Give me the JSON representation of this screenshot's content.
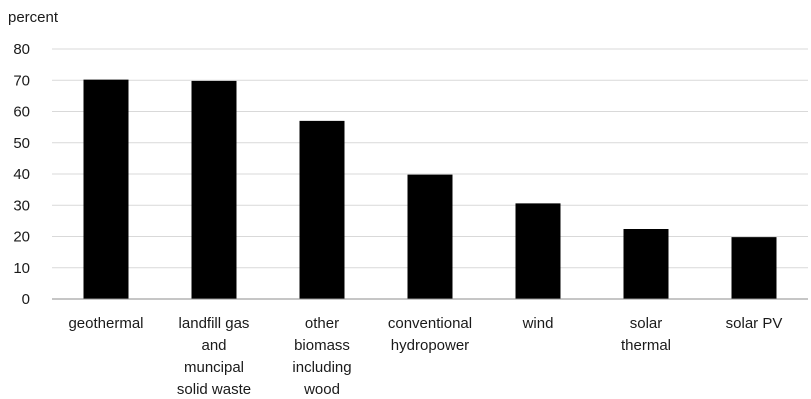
{
  "chart_data": {
    "type": "bar",
    "title": "",
    "xlabel": "",
    "ylabel": "percent",
    "ylim": [
      0,
      80
    ],
    "yticks": [
      0,
      10,
      20,
      30,
      40,
      50,
      60,
      70,
      80
    ],
    "grid": true,
    "legend": "none",
    "categories": [
      [
        "geothermal"
      ],
      [
        "landfill gas",
        "and",
        "muncipal",
        "solid waste"
      ],
      [
        "other",
        "biomass",
        "including",
        "wood"
      ],
      [
        "conventional",
        "hydropower"
      ],
      [
        "wind"
      ],
      [
        "solar",
        "thermal"
      ],
      [
        "solar PV"
      ]
    ],
    "values": [
      70.2,
      69.8,
      57.0,
      39.8,
      30.6,
      22.4,
      19.8
    ],
    "colors": {
      "bar": "#000000",
      "grid": "#d9d9d9",
      "axis": "#8c8c8c"
    }
  }
}
